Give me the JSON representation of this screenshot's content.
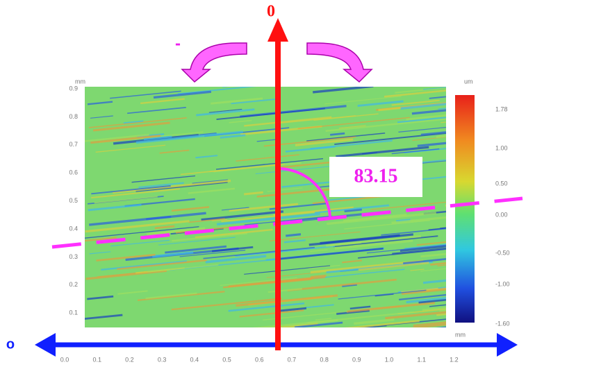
{
  "annotations": {
    "zero_label": "0",
    "minus_label": "-",
    "angle_label": "83.15",
    "left_marker": "o"
  },
  "map": {
    "y_unit": "mm",
    "x_unit": "mm",
    "y_ticks": [
      "0.9",
      "0.8",
      "0.7",
      "0.6",
      "0.5",
      "0.4",
      "0.3",
      "0.2",
      "0.1"
    ],
    "x_ticks": [
      "0.0",
      "0.1",
      "0.2",
      "0.3",
      "0.4",
      "0.5",
      "0.6",
      "0.7",
      "0.8",
      "0.9",
      "1.0",
      "1.1",
      "1.2"
    ]
  },
  "colorbar": {
    "unit": "um",
    "labels": [
      "1.78",
      "1.00",
      "0.50",
      "0.00",
      "-0.50",
      "-1.00",
      "-1.60"
    ]
  }
}
